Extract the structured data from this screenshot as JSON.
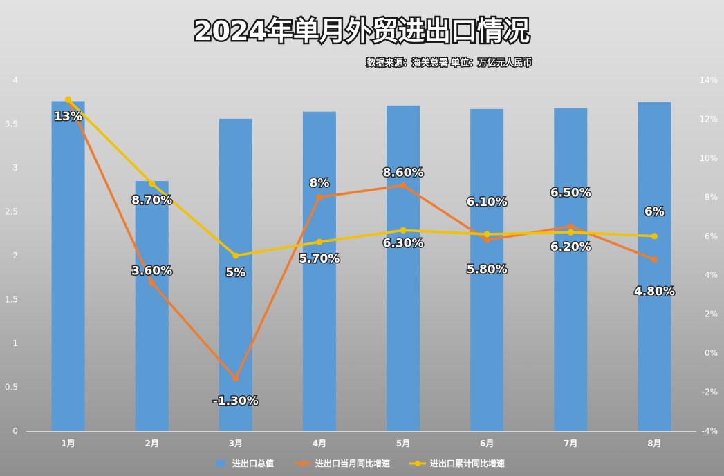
{
  "chart_data": {
    "type": "bar",
    "title": "2024年单月外贸进出口情况",
    "subtitle": "数据来源：海关总署 单位：万亿元人民币",
    "categories": [
      "1月",
      "2月",
      "3月",
      "4月",
      "5月",
      "6月",
      "7月",
      "8月"
    ],
    "y_left": {
      "min": 0,
      "max": 4,
      "ticks": [
        "0",
        "0.5",
        "1",
        "1.5",
        "2",
        "2.5",
        "3",
        "3.5",
        "4"
      ]
    },
    "y_right": {
      "min": -4,
      "max": 14,
      "ticks": [
        "-4%",
        "-2%",
        "0%",
        "2%",
        "4%",
        "6%",
        "8%",
        "10%",
        "12%",
        "14%"
      ]
    },
    "grid": false,
    "legend_position": "bottom",
    "series": [
      {
        "name": "进出口总值",
        "type": "bar",
        "axis": "left",
        "color": "#5b9bd5",
        "values": [
          3.76,
          2.85,
          3.56,
          3.64,
          3.71,
          3.67,
          3.68,
          3.75
        ],
        "labels": [
          "",
          "",
          "",
          "",
          "",
          "",
          "",
          ""
        ]
      },
      {
        "name": "进出口当月同比增速",
        "type": "line",
        "axis": "right",
        "color": "#ed7d31",
        "values": [
          13,
          3.6,
          -1.3,
          8,
          8.6,
          5.8,
          6.5,
          4.8
        ],
        "labels": [
          "",
          "3.60%",
          "-1.30%",
          "8%",
          "8.60%",
          "5.80%",
          "6.50%",
          "4.80%"
        ]
      },
      {
        "name": "进出口累计同比增速",
        "type": "line",
        "axis": "right",
        "color": "#f2c200",
        "values": [
          13,
          8.7,
          5,
          5.7,
          6.3,
          6.1,
          6.2,
          6
        ],
        "labels": [
          "13%",
          "8.70%",
          "5%",
          "5.70%",
          "6.30%",
          "6.10%",
          "6.20%",
          "6%"
        ]
      }
    ]
  }
}
